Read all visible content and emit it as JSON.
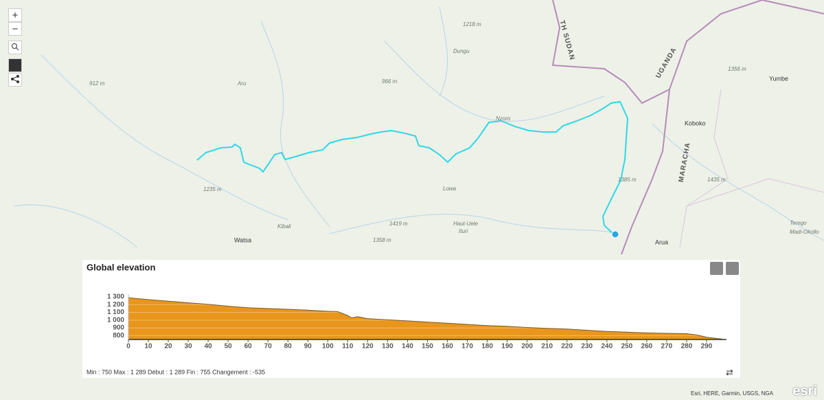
{
  "map": {
    "labels": [
      "912 m",
      "Aru",
      "966 m",
      "1218 m",
      "Dungu",
      "Nzoro",
      "1235 m",
      "Kibali",
      "1419 m",
      "1358 m",
      "Watsa",
      "Haut-Uele",
      "Ituri",
      "Lowa",
      "1385 m",
      "TH SUDAN",
      "UGANDA",
      "Koboko",
      "Yumbe",
      "1356 m",
      "1435 m",
      "Arua",
      "Terego",
      "Madi-Okollo",
      "MARACHA"
    ],
    "zoom_in": "+",
    "zoom_out": "−",
    "attribution": "Esri, HERE, Garmin, USGS, NGA",
    "logo": "esri"
  },
  "elevation_profile": {
    "title": "Global elevation",
    "x": [
      0,
      10,
      20,
      30,
      40,
      50,
      60,
      70,
      80,
      90,
      100,
      105,
      110,
      112,
      115,
      120,
      130,
      140,
      150,
      160,
      170,
      180,
      190,
      200,
      210,
      220,
      230,
      240,
      250,
      260,
      270,
      280,
      285,
      290,
      298
    ],
    "values": [
      1289,
      1265,
      1245,
      1225,
      1205,
      1180,
      1160,
      1150,
      1140,
      1130,
      1115,
      1110,
      1060,
      1030,
      1045,
      1020,
      1005,
      990,
      975,
      960,
      945,
      930,
      920,
      905,
      895,
      885,
      870,
      855,
      845,
      835,
      830,
      825,
      810,
      780,
      755
    ],
    "xlim": [
      0,
      300
    ],
    "ylim": [
      750,
      1300
    ],
    "xticks": [
      0,
      10,
      20,
      30,
      40,
      50,
      60,
      70,
      80,
      90,
      100,
      110,
      120,
      130,
      140,
      150,
      160,
      170,
      180,
      190,
      200,
      210,
      220,
      230,
      240,
      250,
      260,
      270,
      280,
      290
    ],
    "yticks": [
      800,
      900,
      {
        "value": 1000,
        "label": "1 000"
      },
      {
        "value": 1100,
        "label": "1 100"
      },
      {
        "value": 1200,
        "label": "1 200"
      },
      {
        "value": 1300,
        "label": "1 300"
      }
    ],
    "color": "#e8961c",
    "stats": "Min : 750 Max : 1 289 Début : 1 289 Fin : 755 Changement : -535"
  }
}
